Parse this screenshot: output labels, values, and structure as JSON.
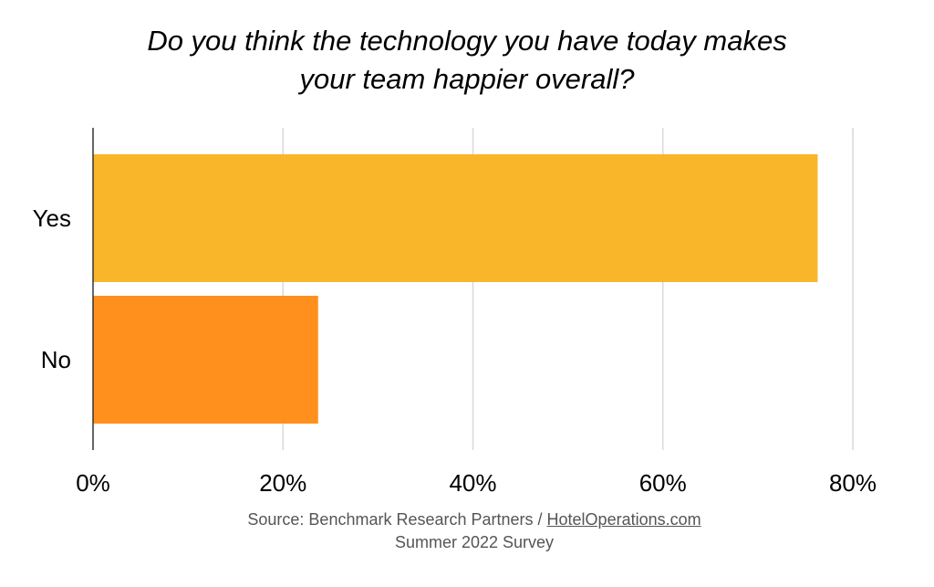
{
  "chart_data": {
    "type": "bar",
    "orientation": "horizontal",
    "title_lines": [
      "Do you think the technology you have today makes",
      "your team happier overall?"
    ],
    "categories": [
      "Yes",
      "No"
    ],
    "values": [
      76.3,
      23.7
    ],
    "colors": [
      "#FAB62A",
      "#FF901E"
    ],
    "xlim": [
      0,
      80
    ],
    "xticks": [
      0,
      20,
      40,
      60,
      80
    ],
    "xtick_labels": [
      "0%",
      "20%",
      "40%",
      "60%",
      "80%"
    ],
    "grid": true,
    "xlabel": "",
    "ylabel": ""
  },
  "source": {
    "prefix": "Source: Benchmark Research Partners / ",
    "link": "HotelOperations.com",
    "line2": "Summer 2022 Survey"
  }
}
